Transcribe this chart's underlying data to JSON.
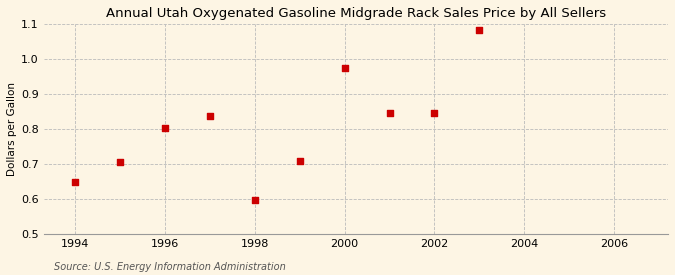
{
  "title": "Annual Utah Oxygenated Gasoline Midgrade Rack Sales Price by All Sellers",
  "ylabel": "Dollars per Gallon",
  "source": "Source: U.S. Energy Information Administration",
  "background_color": "#fdf5e4",
  "x_data": [
    1994,
    1995,
    1996,
    1997,
    1998,
    1999,
    2000,
    2001,
    2002,
    2003
  ],
  "y_data": [
    0.648,
    0.706,
    0.802,
    0.838,
    0.596,
    0.708,
    0.974,
    0.845,
    0.845,
    1.082
  ],
  "marker_color": "#cc0000",
  "marker_size": 16,
  "xlim": [
    1993.3,
    2007.2
  ],
  "ylim": [
    0.5,
    1.1
  ],
  "xticks": [
    1994,
    1996,
    1998,
    2000,
    2002,
    2004,
    2006
  ],
  "yticks": [
    0.5,
    0.6,
    0.7,
    0.8,
    0.9,
    1.0,
    1.1
  ],
  "grid_color": "#bbbbbb",
  "title_fontsize": 9.5,
  "label_fontsize": 7.5,
  "tick_fontsize": 8,
  "source_fontsize": 7
}
